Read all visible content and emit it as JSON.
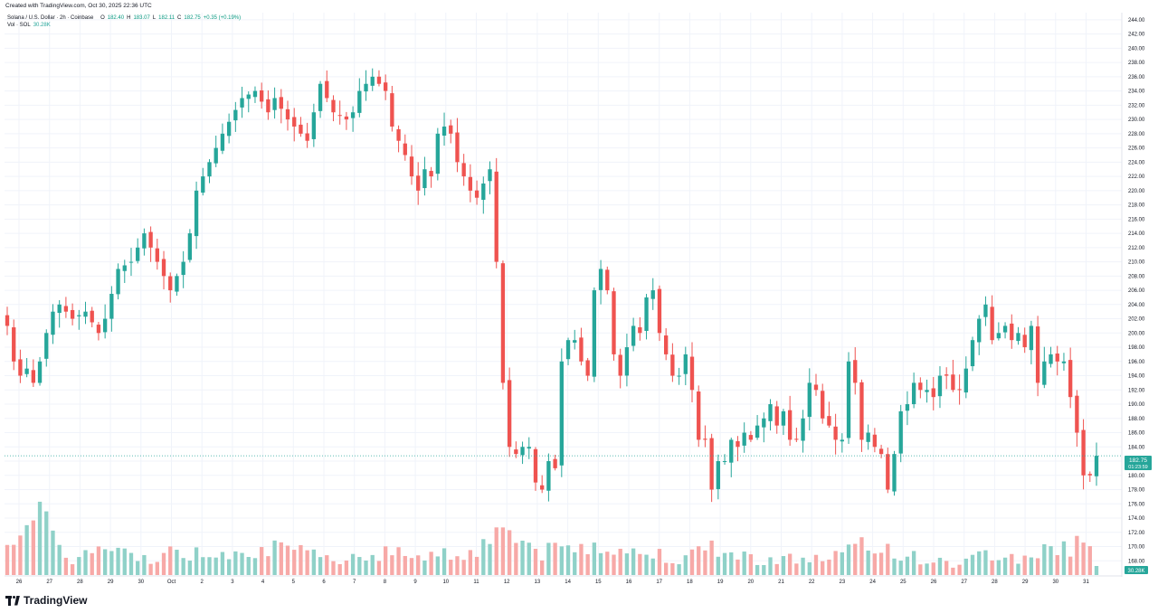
{
  "attribution": "Created with TradingView.com, Oct 30, 2025 22:36 UTC",
  "legend": {
    "symbol": "Solana / U.S. Dollar · 2h · Coinbase",
    "o_label": "O",
    "o": "182.40",
    "h_label": "H",
    "h": "183.07",
    "l_label": "L",
    "l": "182.11",
    "c_label": "C",
    "c": "182.75",
    "change": "+0.35 (+0.19%)",
    "vol_label": "Vol · SOL",
    "vol": "30.28K"
  },
  "price_label": {
    "price": "182.75",
    "countdown": "01:23:59",
    "volume": "30.28K"
  },
  "brand": {
    "name": "TradingView",
    "icon": "tradingview-logo-icon"
  },
  "colors": {
    "up": "#26a69a",
    "down": "#ef5350",
    "up_volume": "#8fd1c8",
    "down_volume": "#f7a9a7",
    "price_line": "#26a69a"
  },
  "chart_data": {
    "type": "candlestick",
    "title": "Solana / U.S. Dollar · 2h · Coinbase",
    "interval": "2h",
    "ylim": [
      166,
      245
    ],
    "y_ticks": [
      "168.00",
      "170.00",
      "172.00",
      "174.00",
      "176.00",
      "178.00",
      "180.00",
      "182.00",
      "184.00",
      "186.00",
      "188.00",
      "190.00",
      "192.00",
      "194.00",
      "196.00",
      "198.00",
      "200.00",
      "202.00",
      "204.00",
      "206.00",
      "208.00",
      "210.00",
      "212.00",
      "214.00",
      "216.00",
      "218.00",
      "220.00",
      "222.00",
      "224.00",
      "226.00",
      "228.00",
      "230.00",
      "232.00",
      "234.00",
      "236.00",
      "238.00",
      "240.00",
      "242.00",
      "244.00"
    ],
    "x_ticks": [
      "26",
      "27",
      "28",
      "29",
      "30",
      "Oct",
      "2",
      "3",
      "4",
      "5",
      "6",
      "7",
      "8",
      "9",
      "10",
      "11",
      "12",
      "13",
      "14",
      "15",
      "16",
      "17",
      "18",
      "19",
      "20",
      "21",
      "22",
      "23",
      "24",
      "25",
      "26",
      "27",
      "28",
      "29",
      "30",
      "31"
    ],
    "last_price": 182.75,
    "anchors": [
      [
        0,
        201
      ],
      [
        1,
        196
      ],
      [
        2,
        194
      ],
      [
        3,
        195
      ],
      [
        4,
        193
      ],
      [
        5,
        196
      ],
      [
        6,
        200
      ],
      [
        7,
        203
      ],
      [
        8,
        204
      ],
      [
        10,
        202
      ],
      [
        12,
        203
      ],
      [
        14,
        200
      ],
      [
        15,
        202
      ],
      [
        17,
        209
      ],
      [
        19,
        210
      ],
      [
        21,
        214
      ],
      [
        23,
        210
      ],
      [
        24,
        208
      ],
      [
        25,
        206
      ],
      [
        27,
        210
      ],
      [
        28,
        214
      ],
      [
        29,
        220
      ],
      [
        31,
        224
      ],
      [
        33,
        228
      ],
      [
        36,
        233
      ],
      [
        38,
        234
      ],
      [
        40,
        231
      ],
      [
        41,
        233
      ],
      [
        43,
        230
      ],
      [
        45,
        228
      ],
      [
        46,
        227
      ],
      [
        48,
        235
      ],
      [
        50,
        231
      ],
      [
        52,
        230
      ],
      [
        53,
        231
      ],
      [
        54,
        234
      ],
      [
        56,
        236
      ],
      [
        58,
        234
      ],
      [
        59,
        229
      ],
      [
        61,
        225
      ],
      [
        62,
        222
      ],
      [
        63,
        220
      ],
      [
        64,
        223
      ],
      [
        65,
        222
      ],
      [
        66,
        228
      ],
      [
        67,
        229
      ],
      [
        68,
        228
      ],
      [
        69,
        224
      ],
      [
        70,
        222
      ],
      [
        71,
        220
      ],
      [
        72,
        219
      ],
      [
        73,
        221
      ],
      [
        74,
        223
      ],
      [
        75,
        210
      ],
      [
        76,
        193
      ],
      [
        77,
        184
      ],
      [
        78,
        183
      ],
      [
        79,
        184
      ],
      [
        80,
        184
      ],
      [
        81,
        179
      ],
      [
        82,
        178
      ],
      [
        83,
        182
      ],
      [
        84,
        181
      ],
      [
        85,
        196
      ],
      [
        86,
        199
      ],
      [
        87,
        199
      ],
      [
        88,
        196
      ],
      [
        89,
        194
      ],
      [
        90,
        206
      ],
      [
        91,
        209
      ],
      [
        92,
        206
      ],
      [
        93,
        197
      ],
      [
        94,
        194
      ],
      [
        95,
        198
      ],
      [
        96,
        201
      ],
      [
        97,
        200
      ],
      [
        98,
        205
      ],
      [
        99,
        206
      ],
      [
        100,
        200
      ],
      [
        101,
        197
      ],
      [
        102,
        194
      ],
      [
        103,
        194
      ],
      [
        104,
        197
      ],
      [
        105,
        192
      ],
      [
        106,
        185
      ],
      [
        107,
        185
      ],
      [
        108,
        178
      ],
      [
        109,
        182
      ],
      [
        110,
        182
      ],
      [
        111,
        185
      ],
      [
        112,
        184
      ],
      [
        113,
        186
      ],
      [
        114,
        185
      ],
      [
        115,
        187
      ],
      [
        116,
        188
      ],
      [
        117,
        190
      ],
      [
        118,
        187
      ],
      [
        119,
        189
      ],
      [
        120,
        185
      ],
      [
        121,
        185
      ],
      [
        122,
        188
      ],
      [
        123,
        193
      ],
      [
        124,
        192
      ],
      [
        125,
        188
      ],
      [
        126,
        187
      ],
      [
        127,
        185
      ],
      [
        128,
        185
      ],
      [
        129,
        196
      ],
      [
        130,
        193
      ],
      [
        131,
        185
      ],
      [
        132,
        186
      ],
      [
        133,
        184
      ],
      [
        134,
        183
      ],
      [
        135,
        178
      ],
      [
        136,
        183
      ],
      [
        137,
        189
      ],
      [
        138,
        190
      ],
      [
        139,
        193
      ],
      [
        140,
        192
      ],
      [
        141,
        192
      ],
      [
        142,
        191
      ],
      [
        143,
        194
      ],
      [
        144,
        194
      ],
      [
        145,
        192
      ],
      [
        146,
        192
      ],
      [
        147,
        195
      ],
      [
        148,
        199
      ],
      [
        149,
        202
      ],
      [
        150,
        204
      ],
      [
        151,
        199
      ],
      [
        152,
        200
      ],
      [
        153,
        201
      ],
      [
        154,
        199
      ],
      [
        155,
        200
      ],
      [
        156,
        198
      ],
      [
        157,
        201
      ],
      [
        158,
        193
      ],
      [
        159,
        196
      ],
      [
        160,
        197
      ],
      [
        161,
        196
      ],
      [
        162,
        196
      ],
      [
        163,
        191
      ],
      [
        164,
        186
      ],
      [
        165,
        180
      ],
      [
        166,
        180
      ],
      [
        167,
        182.75
      ]
    ],
    "volume_anchors": [
      [
        0,
        8
      ],
      [
        5,
        10
      ],
      [
        10,
        3
      ],
      [
        15,
        5
      ],
      [
        20,
        3
      ],
      [
        25,
        4
      ],
      [
        30,
        4
      ],
      [
        35,
        5
      ],
      [
        40,
        5
      ],
      [
        45,
        4
      ],
      [
        50,
        3
      ],
      [
        55,
        4
      ],
      [
        60,
        4
      ],
      [
        65,
        4
      ],
      [
        70,
        4
      ],
      [
        74,
        6
      ],
      [
        75,
        11
      ],
      [
        76,
        10
      ],
      [
        77,
        8
      ],
      [
        78,
        6
      ],
      [
        80,
        6
      ],
      [
        82,
        4
      ],
      [
        85,
        5
      ],
      [
        88,
        5
      ],
      [
        90,
        6
      ],
      [
        92,
        6
      ],
      [
        94,
        5
      ],
      [
        96,
        4
      ],
      [
        100,
        4
      ],
      [
        104,
        3
      ],
      [
        106,
        4
      ],
      [
        108,
        6
      ],
      [
        110,
        4
      ],
      [
        115,
        3
      ],
      [
        120,
        3
      ],
      [
        125,
        3
      ],
      [
        128,
        4
      ],
      [
        130,
        5
      ],
      [
        133,
        5
      ],
      [
        135,
        5
      ],
      [
        137,
        4
      ],
      [
        140,
        3
      ],
      [
        145,
        2
      ],
      [
        148,
        3
      ],
      [
        150,
        4
      ],
      [
        155,
        3
      ],
      [
        158,
        4
      ],
      [
        160,
        5
      ],
      [
        163,
        5
      ],
      [
        165,
        8
      ],
      [
        167,
        2
      ]
    ]
  }
}
